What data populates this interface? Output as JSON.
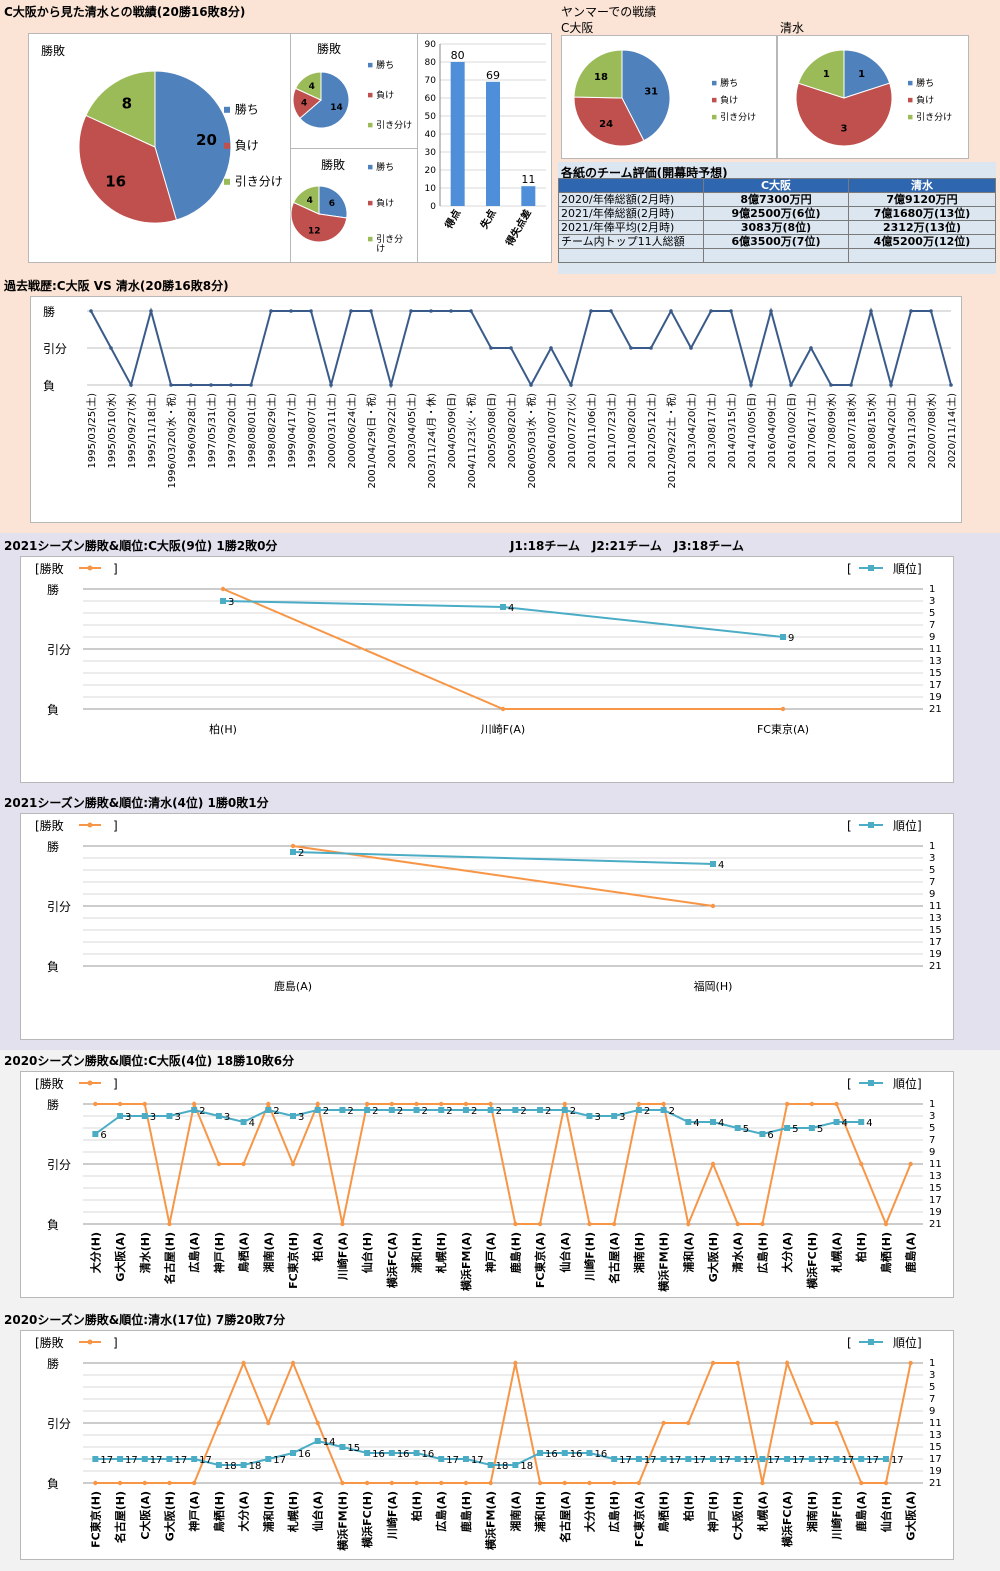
{
  "colors": {
    "win": "#4f81bd",
    "lose": "#c0504d",
    "draw": "#9bbb59",
    "hist_line": "#3a5b8a",
    "result_line": "#f79646",
    "rank_line": "#4bacc6",
    "bar": "#4f8fd9",
    "bg_top": "#fbe4d5",
    "bg_2021": "#e3e1ee",
    "bg_2020": "#f2f2f2",
    "table_header": "#2f66b0"
  },
  "top": {
    "title": "C大阪から見た清水との戦績(20勝16敗8分)",
    "big_pie": {
      "label": "勝敗",
      "values": [
        20,
        16,
        8
      ],
      "legend": [
        "勝ち",
        "負け",
        "引き分け"
      ]
    },
    "small_pie1": {
      "label": "勝敗",
      "values": [
        14,
        4,
        4
      ],
      "legend": [
        "勝ち",
        "負け",
        "引き分け"
      ]
    },
    "small_pie2": {
      "label": "勝敗",
      "values": [
        6,
        12,
        4
      ],
      "legend": [
        "勝ち",
        "負け",
        "引き分け"
      ]
    },
    "bar": {
      "categories": [
        "得点",
        "失点",
        "得失点差"
      ],
      "values": [
        80,
        69,
        11
      ],
      "ylim": [
        0,
        90
      ],
      "yticks": [
        0,
        10,
        20,
        30,
        40,
        50,
        60,
        70,
        80,
        90
      ]
    },
    "yanmar": {
      "title": "ヤンマーでの戦績",
      "cosaka": {
        "label": "C大阪",
        "values": [
          31,
          24,
          18
        ],
        "legend": [
          "勝ち",
          "負け",
          "引き分け"
        ]
      },
      "shimizu": {
        "label": "清水",
        "values": [
          1,
          3,
          1
        ],
        "legend": [
          "勝ち",
          "負け",
          "引き分け"
        ]
      }
    },
    "evaluation": {
      "title": "各紙のチーム評価(開幕時予想)",
      "headers": [
        "",
        "C大阪",
        "清水"
      ],
      "rows": [
        [
          "2020/年俸総額(2月時)",
          "8億7300万円",
          "7億9120万円"
        ],
        [
          "2021/年俸総額(2月時)",
          "9億2500万(6位)",
          "7億1680万(13位)"
        ],
        [
          "2021/年俸平均(2月時)",
          "3083万(8位)",
          "2312万(13位)"
        ],
        [
          "チーム内トップ11人総額",
          "6億3500万(7位)",
          "4億5200万(12位)"
        ],
        [
          "",
          "",
          ""
        ]
      ]
    }
  },
  "history": {
    "title": "過去戦歴:C大阪 VS 清水(20勝16敗8分)",
    "ylabels": [
      "勝",
      "引分",
      "負"
    ],
    "dates": [
      "1995/03/25(土)",
      "1995/05/10(水)",
      "1995/09/27(水)",
      "1995/11/18(土)",
      "1996/03/20(水・祝)",
      "1996/09/28(土)",
      "1997/05/31(土)",
      "1997/09/20(土)",
      "1998/08/01(土)",
      "1998/08/29(土)",
      "1999/04/17(土)",
      "1999/08/07(土)",
      "2000/03/11(土)",
      "2000/06/24(土)",
      "2001/04/29(日・祝)",
      "2001/09/22(土)",
      "2003/04/05(土)",
      "2003/11/24(月・休)",
      "2004/05/09(日)",
      "2004/11/23(火・祝)",
      "2005/05/08(日)",
      "2005/08/20(土)",
      "2006/05/03(水・祝)",
      "2006/10/07(土)",
      "2010/07/27(火)",
      "2010/11/06(土)",
      "2011/07/23(土)",
      "2011/08/20(土)",
      "2012/05/12(土)",
      "2012/09/22(土・祝)",
      "2013/04/20(土)",
      "2013/08/17(土)",
      "2014/03/15(土)",
      "2014/10/05(日)",
      "2016/04/09(土)",
      "2016/10/02(日)",
      "2017/06/17(土)",
      "2017/08/09(水)",
      "2018/07/18(水)",
      "2018/08/15(水)",
      "2019/04/20(土)",
      "2019/11/30(土)",
      "2020/07/08(水)",
      "2020/11/14(土)"
    ],
    "results": [
      2,
      1,
      0,
      2,
      0,
      0,
      0,
      0,
      0,
      2,
      2,
      2,
      0,
      2,
      2,
      0,
      2,
      2,
      2,
      2,
      1,
      1,
      0,
      1,
      0,
      2,
      2,
      1,
      1,
      2,
      1,
      2,
      2,
      0,
      2,
      0,
      1,
      0,
      0,
      2,
      0,
      2,
      2,
      0
    ]
  },
  "season_charts": [
    {
      "title": "2021シーズン勝敗&順位:C大阪(9位) 1勝2敗0分",
      "legend_result": "[勝敗",
      "legend_result_close": "]",
      "legend_rank": "[",
      "legend_rank_label": "順位]",
      "ylabels": [
        "勝",
        "引分",
        "負"
      ],
      "rank_ticks": [
        "1",
        "3",
        "5",
        "7",
        "9",
        "11",
        "13",
        "15",
        "17",
        "19",
        "21"
      ],
      "opponents": [
        "柏(H)",
        "川崎F(A)",
        "FC東京(A)"
      ],
      "results": [
        2,
        0,
        0
      ],
      "ranks": [
        3,
        4,
        9
      ],
      "show_rank_labels": true
    },
    {
      "title": "2021シーズン勝敗&順位:清水(4位) 1勝0敗1分",
      "legend_result": "[勝敗",
      "legend_result_close": "]",
      "legend_rank": "[",
      "legend_rank_label": "順位]",
      "ylabels": [
        "勝",
        "引分",
        "負"
      ],
      "rank_ticks": [
        "1",
        "3",
        "5",
        "7",
        "9",
        "11",
        "13",
        "15",
        "17",
        "19",
        "21"
      ],
      "opponents": [
        "鹿島(A)",
        "福岡(H)"
      ],
      "results": [
        2,
        1
      ],
      "ranks": [
        2,
        4
      ],
      "show_rank_labels": true
    },
    {
      "title": "2020シーズン勝敗&順位:C大阪(4位) 18勝10敗6分",
      "legend_result": "[勝敗",
      "legend_result_close": "]",
      "legend_rank": "[",
      "legend_rank_label": "順位]",
      "ylabels": [
        "勝",
        "引分",
        "負"
      ],
      "rank_ticks": [
        "1",
        "3",
        "5",
        "7",
        "9",
        "11",
        "13",
        "15",
        "17",
        "19",
        "21"
      ],
      "opponents": [
        "大分(H)",
        "G大阪(A)",
        "清水(H)",
        "名古屋(H)",
        "広島(A)",
        "神戸(H)",
        "鳥栖(A)",
        "湘南(A)",
        "FC東京(H)",
        "柏(A)",
        "川崎F(A)",
        "仙台(H)",
        "横浜FC(A)",
        "浦和(H)",
        "札幌(H)",
        "横浜FM(A)",
        "神戸(A)",
        "鹿島(H)",
        "FC東京(A)",
        "仙台(A)",
        "川崎F(H)",
        "名古屋(A)",
        "湘南(H)",
        "横浜FM(H)",
        "浦和(A)",
        "G大阪(H)",
        "清水(A)",
        "広島(H)",
        "大分(A)",
        "横浜FC(H)",
        "札幌(A)",
        "柏(H)",
        "鳥栖(H)",
        "鹿島(A)"
      ],
      "results": [
        2,
        2,
        2,
        0,
        2,
        1,
        1,
        2,
        1,
        2,
        0,
        2,
        2,
        2,
        2,
        2,
        2,
        0,
        0,
        2,
        0,
        0,
        2,
        2,
        0,
        1,
        0,
        0,
        2,
        2,
        2,
        1,
        0,
        1
      ],
      "ranks": [
        6,
        3,
        3,
        3,
        2,
        3,
        4,
        2,
        3,
        2,
        2,
        2,
        2,
        2,
        2,
        2,
        2,
        2,
        2,
        2,
        3,
        3,
        2,
        2,
        4,
        4,
        5,
        6,
        5,
        5,
        4,
        4,
        null,
        null
      ],
      "show_rank_labels": true
    },
    {
      "title": "2020シーズン勝敗&順位:清水(17位) 7勝20敗7分",
      "legend_result": "[勝敗",
      "legend_result_close": "]",
      "legend_rank": "[",
      "legend_rank_label": "順位]",
      "ylabels": [
        "勝",
        "引分",
        "負"
      ],
      "rank_ticks": [
        "1",
        "3",
        "5",
        "7",
        "9",
        "11",
        "13",
        "15",
        "17",
        "19",
        "21"
      ],
      "opponents": [
        "FC東京(H)",
        "名古屋(H)",
        "C大阪(A)",
        "G大阪(H)",
        "神戸(A)",
        "鳥栖(H)",
        "大分(A)",
        "浦和(H)",
        "札幌(H)",
        "仙台(A)",
        "横浜FM(H)",
        "横浜FC(H)",
        "川崎F(A)",
        "柏(H)",
        "広島(A)",
        "鹿島(H)",
        "横浜FM(A)",
        "湘南(A)",
        "浦和(H)",
        "名古屋(A)",
        "大分(H)",
        "広島(H)",
        "FC東京(A)",
        "鳥栖(H)",
        "柏(H)",
        "神戸(H)",
        "C大阪(H)",
        "札幌(A)",
        "横浜FC(A)",
        "湘南(H)",
        "川崎F(H)",
        "鹿島(A)",
        "仙台(H)",
        "G大阪(A)"
      ],
      "results": [
        0,
        0,
        0,
        0,
        0,
        1,
        2,
        1,
        2,
        1,
        0,
        0,
        0,
        0,
        0,
        0,
        0,
        2,
        0,
        0,
        0,
        0,
        0,
        1,
        1,
        2,
        2,
        0,
        2,
        1,
        1,
        0,
        0,
        2
      ],
      "ranks": [
        17,
        17,
        17,
        17,
        17,
        18,
        18,
        17,
        16,
        14,
        15,
        16,
        16,
        16,
        17,
        17,
        18,
        18,
        16,
        16,
        16,
        17,
        17,
        17,
        17,
        17,
        17,
        17,
        17,
        17,
        17,
        17,
        17,
        null
      ],
      "show_rank_labels": true
    }
  ],
  "league_info": "J1:18チーム　J2:21チーム　J3:18チーム"
}
